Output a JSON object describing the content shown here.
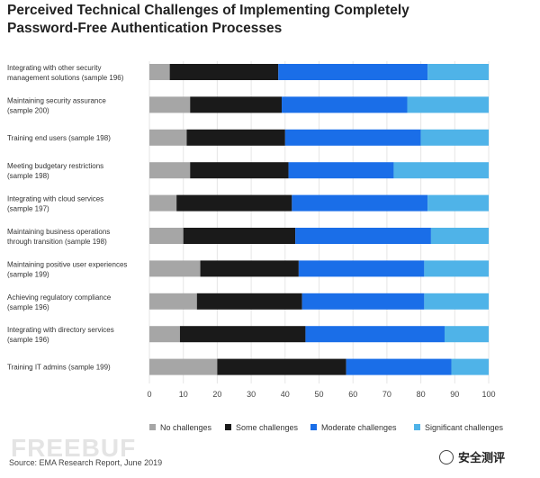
{
  "chart_data": {
    "type": "bar",
    "orientation": "horizontal",
    "stacked": true,
    "title": "Perceived Technical Challenges of Implementing Completely\nPassword-Free Authentication Processes",
    "categories": [
      "Integrating with other security|management solutions (sample 196)",
      "Maintaining security assurance|(sample 200)",
      "Training end users (sample 198)",
      "Meeting budgetary restrictions|(sample 198)",
      "Integrating with cloud services|(sample 197)",
      "Maintaining business operations|through transition (sample 198)",
      "Maintaining positive user experiences|(sample 199)",
      "Achieving regulatory compliance|(sample 196)",
      "Integrating with directory services|(sample 196)",
      "Training IT admins (sample 199)"
    ],
    "series": [
      {
        "name": "No challenges",
        "color": "#a6a6a6",
        "values": [
          6,
          12,
          11,
          12,
          8,
          10,
          15,
          14,
          9,
          20
        ]
      },
      {
        "name": "Some challenges",
        "color": "#1a1a1a",
        "values": [
          32,
          27,
          29,
          29,
          34,
          33,
          29,
          31,
          37,
          38
        ]
      },
      {
        "name": "Moderate challenges",
        "color": "#1a6ee8",
        "values": [
          44,
          37,
          40,
          31,
          40,
          40,
          37,
          36,
          41,
          31
        ]
      },
      {
        "name": "Significant challenges",
        "color": "#4fb3e8",
        "values": [
          18,
          24,
          20,
          28,
          18,
          17,
          19,
          19,
          13,
          11
        ]
      }
    ],
    "xlim": [
      0,
      100
    ],
    "xticks": [
      "0",
      "10",
      "20",
      "30",
      "40",
      "50",
      "60",
      "70",
      "80",
      "90",
      "100"
    ],
    "grid": true,
    "legend_position": "bottom"
  },
  "source": "Source: EMA Research Report, June 2019",
  "watermark": "FREEBUF",
  "wechat_label": "安全测评"
}
